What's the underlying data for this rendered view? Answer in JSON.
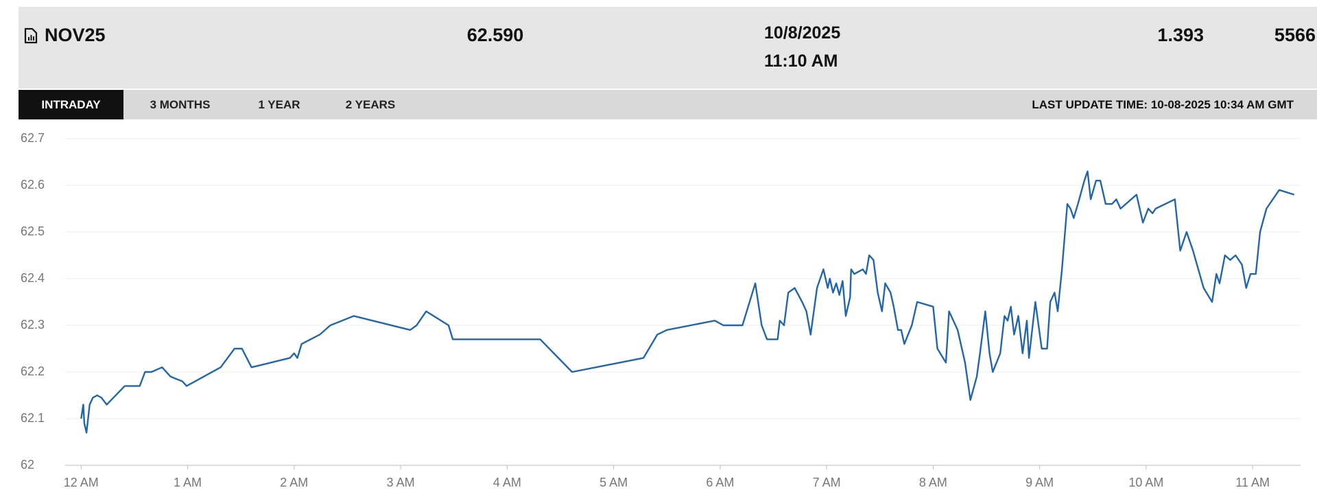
{
  "header": {
    "title": "NOV25",
    "price": "62.590",
    "date": "10/8/2025",
    "time": "11:10 AM",
    "change": "1.393",
    "volume": "5566"
  },
  "tabs": [
    "INTRADAY",
    "3 MONTHS",
    "1 YEAR",
    "2 YEARS"
  ],
  "last_update": "LAST UPDATE TIME: 10-08-2025 10:34 AM GMT",
  "chart_data": {
    "type": "line",
    "color": "#2166ac",
    "x": [
      0,
      0.02,
      0.03,
      0.05,
      0.08,
      0.11,
      0.15,
      0.19,
      0.24,
      0.41,
      0.55,
      0.6,
      0.66,
      0.76,
      0.84,
      0.95,
      0.99,
      1.31,
      1.44,
      1.51,
      1.6,
      1.96,
      2.0,
      2.03,
      2.07,
      2.24,
      2.34,
      2.56,
      3.09,
      3.15,
      3.24,
      3.45,
      3.49,
      4.31,
      4.61,
      5.28,
      5.41,
      5.5,
      5.95,
      6.03,
      6.21,
      6.33,
      6.39,
      6.44,
      6.54,
      6.56,
      6.6,
      6.64,
      6.7,
      6.77,
      6.81,
      6.85,
      6.91,
      6.97,
      7.01,
      7.03,
      7.06,
      7.09,
      7.12,
      7.15,
      7.18,
      7.22,
      7.23,
      7.26,
      7.34,
      7.37,
      7.4,
      7.44,
      7.48,
      7.52,
      7.55,
      7.6,
      7.63,
      7.67,
      7.7,
      7.73,
      7.8,
      7.85,
      8.0,
      8.04,
      8.12,
      8.15,
      8.23,
      8.3,
      8.35,
      8.41,
      8.44,
      8.49,
      8.53,
      8.56,
      8.63,
      8.67,
      8.7,
      8.73,
      8.76,
      8.8,
      8.84,
      8.88,
      8.9,
      8.96,
      9.02,
      9.07,
      9.1,
      9.14,
      9.17,
      9.21,
      9.26,
      9.29,
      9.32,
      9.36,
      9.42,
      9.45,
      9.48,
      9.53,
      9.57,
      9.62,
      9.68,
      9.72,
      9.76,
      9.81,
      9.91,
      9.97,
      10.02,
      10.06,
      10.09,
      10.27,
      10.32,
      10.38,
      10.44,
      10.54,
      10.62,
      10.66,
      10.69,
      10.74,
      10.79,
      10.84,
      10.9,
      10.94,
      10.98,
      11.03,
      11.07,
      11.13,
      11.25,
      11.39
    ],
    "values": [
      62.1,
      62.13,
      62.09,
      62.07,
      62.13,
      62.145,
      62.15,
      62.145,
      62.13,
      62.17,
      62.17,
      62.2,
      62.2,
      62.21,
      62.19,
      62.18,
      62.17,
      62.21,
      62.25,
      62.25,
      62.21,
      62.23,
      62.24,
      62.23,
      62.26,
      62.28,
      62.3,
      62.32,
      62.29,
      62.3,
      62.33,
      62.3,
      62.27,
      62.27,
      62.2,
      62.23,
      62.28,
      62.29,
      62.31,
      62.3,
      62.3,
      62.39,
      62.3,
      62.27,
      62.27,
      62.31,
      62.3,
      62.37,
      62.38,
      62.35,
      62.33,
      62.28,
      62.38,
      62.42,
      62.38,
      62.4,
      62.37,
      62.39,
      62.365,
      62.395,
      62.32,
      62.36,
      62.42,
      62.41,
      62.42,
      62.41,
      62.45,
      62.44,
      62.37,
      62.33,
      62.39,
      62.37,
      62.34,
      62.29,
      62.29,
      62.26,
      62.3,
      62.35,
      62.34,
      62.25,
      62.22,
      62.33,
      62.29,
      62.22,
      62.14,
      62.19,
      62.24,
      62.33,
      62.24,
      62.2,
      62.24,
      62.32,
      62.31,
      62.34,
      62.28,
      62.32,
      62.24,
      62.31,
      62.23,
      62.35,
      62.25,
      62.25,
      62.35,
      62.37,
      62.33,
      62.42,
      62.56,
      62.55,
      62.53,
      62.56,
      62.61,
      62.63,
      62.57,
      62.61,
      62.61,
      62.56,
      62.56,
      62.57,
      62.55,
      62.56,
      62.58,
      62.52,
      62.55,
      62.54,
      62.55,
      62.57,
      62.46,
      62.5,
      62.46,
      62.38,
      62.35,
      62.41,
      62.39,
      62.45,
      62.44,
      62.45,
      62.43,
      62.38,
      62.41,
      62.41,
      62.5,
      62.55,
      62.59,
      62.58
    ],
    "xlim": [
      -0.15,
      11.45
    ],
    "xticks": [
      {
        "value": 0,
        "label": "12 AM"
      },
      {
        "value": 1,
        "label": "1 AM"
      },
      {
        "value": 2,
        "label": "2 AM"
      },
      {
        "value": 3,
        "label": "3 AM"
      },
      {
        "value": 4,
        "label": "4 AM"
      },
      {
        "value": 5,
        "label": "5 AM"
      },
      {
        "value": 6,
        "label": "6 AM"
      },
      {
        "value": 7,
        "label": "7 AM"
      },
      {
        "value": 8,
        "label": "8 AM"
      },
      {
        "value": 9,
        "label": "9 AM"
      },
      {
        "value": 10,
        "label": "10 AM"
      },
      {
        "value": 11,
        "label": "11 AM"
      }
    ],
    "ylim": [
      62,
      62.7
    ],
    "yticks": [
      62,
      62.1,
      62.2,
      62.3,
      62.4,
      62.5,
      62.6,
      62.7
    ],
    "grid": true
  }
}
